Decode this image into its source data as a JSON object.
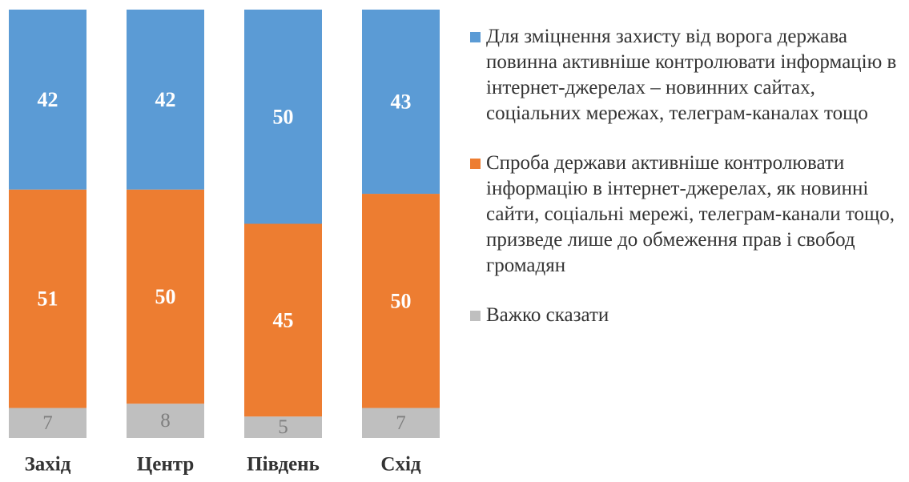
{
  "chart_data": {
    "type": "bar",
    "stacked": true,
    "percent_stacked": true,
    "categories": [
      "Захід",
      "Центр",
      "Південь",
      "Схід"
    ],
    "series": [
      {
        "name": "Важко сказати",
        "values": [
          7,
          8,
          5,
          7
        ],
        "color": "#bfbfbf",
        "label_color": "#7f7f7f"
      },
      {
        "name": "Спроба держави активніше контролювати інформацію в інтернет-джерелах, як новинні сайти, соціальні мережі, телеграм-канали тощо, призведе лише до обмеження прав і свобод громадян",
        "values": [
          51,
          50,
          45,
          50
        ],
        "color": "#ed7d31",
        "label_color": "#ffffff"
      },
      {
        "name": "Для зміцнення захисту від ворога держава повинна активніше контролювати інформацію в інтернет-джерелах – новинних сайтах, соціальних мережах, телеграм-каналах тощо",
        "values": [
          42,
          42,
          50,
          43
        ],
        "color": "#5b9bd5",
        "label_color": "#ffffff"
      }
    ],
    "grid": false,
    "legend_position": "right"
  }
}
